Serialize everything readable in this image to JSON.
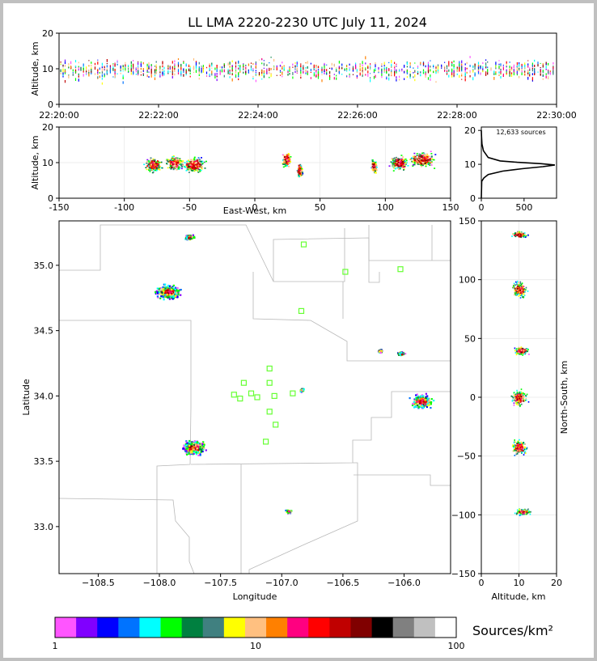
{
  "chart_data": [
    {
      "id": "time-altitude",
      "type": "scatter",
      "title": "LL LMA 2220-2230 UTC July 11, 2024",
      "xlabel": "",
      "ylabel": "Altitude, km",
      "x_ticks": [
        "22:20:00",
        "22:22:00",
        "22:24:00",
        "22:26:00",
        "22:28:00",
        "22:30:00"
      ],
      "x_range": [
        "22:20:00",
        "22:30:00"
      ],
      "y_ticks": [
        0,
        10,
        20
      ],
      "ylim": [
        0,
        20
      ]
    },
    {
      "id": "ew-altitude",
      "type": "scatter",
      "xlabel": "East-West, km",
      "ylabel": "Altitude, km",
      "x_ticks": [
        -150,
        -100,
        -50,
        0,
        50,
        100,
        150
      ],
      "xlim": [
        -150,
        150
      ],
      "y_ticks": [
        0,
        10,
        20
      ],
      "ylim": [
        0,
        20
      ],
      "clusters": [
        {
          "x_center": -78,
          "x_extent": [
            -90,
            -70
          ],
          "alt_center": 9.5
        },
        {
          "x_center": -62,
          "x_extent": [
            -72,
            -52
          ],
          "alt_center": 10
        },
        {
          "x_center": -47,
          "x_extent": [
            -58,
            -33
          ],
          "alt_center": 9.5
        },
        {
          "x_center": 24,
          "x_extent": [
            19,
            29
          ],
          "alt_center": 11
        },
        {
          "x_center": 34,
          "x_extent": [
            31,
            37
          ],
          "alt_center": 8
        },
        {
          "x_center": 91,
          "x_extent": [
            88,
            94
          ],
          "alt_center": 9
        },
        {
          "x_center": 110,
          "x_extent": [
            100,
            120
          ],
          "alt_center": 10
        },
        {
          "x_center": 128,
          "x_extent": [
            117,
            145
          ],
          "alt_center": 11
        }
      ]
    },
    {
      "id": "altitude-histogram",
      "type": "line",
      "annotation": "12,633 sources",
      "x_ticks": [
        0,
        500
      ],
      "xlim": [
        0,
        880
      ],
      "y_ticks": [
        0,
        10,
        20
      ],
      "ylim": [
        0,
        21
      ],
      "profile": [
        {
          "alt": 0,
          "count": 0
        },
        {
          "alt": 5,
          "count": 5
        },
        {
          "alt": 6,
          "count": 30
        },
        {
          "alt": 7,
          "count": 80
        },
        {
          "alt": 8,
          "count": 250
        },
        {
          "alt": 8.7,
          "count": 480
        },
        {
          "alt": 9.3,
          "count": 720
        },
        {
          "alt": 9.8,
          "count": 860
        },
        {
          "alt": 10.2,
          "count": 700
        },
        {
          "alt": 10.6,
          "count": 420
        },
        {
          "alt": 11,
          "count": 220
        },
        {
          "alt": 12,
          "count": 80
        },
        {
          "alt": 14,
          "count": 25
        },
        {
          "alt": 16,
          "count": 8
        },
        {
          "alt": 18,
          "count": 3
        },
        {
          "alt": 20,
          "count": 0
        }
      ]
    },
    {
      "id": "plan-view",
      "type": "scatter",
      "xlabel": "Longitude",
      "ylabel": "Latitude",
      "x_ticks": [
        -108.5,
        -108.0,
        -107.5,
        -107.0,
        -106.5,
        -106.0
      ],
      "xlim": [
        -108.82,
        -105.62
      ],
      "y_ticks": [
        33.0,
        33.5,
        34.0,
        34.5,
        35.0
      ],
      "ylim": [
        32.64,
        35.34
      ],
      "stations": [
        {
          "lon": -106.82,
          "lat": 35.16
        },
        {
          "lon": -106.48,
          "lat": 34.95
        },
        {
          "lon": -106.03,
          "lat": 34.97
        },
        {
          "lon": -106.84,
          "lat": 34.65
        },
        {
          "lon": -107.1,
          "lat": 34.21
        },
        {
          "lon": -107.31,
          "lat": 34.1
        },
        {
          "lon": -107.1,
          "lat": 34.1
        },
        {
          "lon": -107.25,
          "lat": 34.02
        },
        {
          "lon": -107.39,
          "lat": 34.01
        },
        {
          "lon": -107.34,
          "lat": 33.98
        },
        {
          "lon": -107.2,
          "lat": 33.99
        },
        {
          "lon": -107.06,
          "lat": 34.0
        },
        {
          "lon": -106.91,
          "lat": 34.02
        },
        {
          "lon": -107.1,
          "lat": 33.88
        },
        {
          "lon": -107.05,
          "lat": 33.78
        },
        {
          "lon": -107.13,
          "lat": 33.65
        }
      ],
      "clusters": [
        {
          "lon": -107.76,
          "lat": 35.22,
          "dlon": 0.05,
          "dlat": 0.03
        },
        {
          "lon": -107.93,
          "lat": 34.8,
          "dlon": 0.14,
          "dlat": 0.07
        },
        {
          "lon": -106.84,
          "lat": 34.05,
          "dlon": 0.02,
          "dlat": 0.02
        },
        {
          "lon": -106.2,
          "lat": 34.35,
          "dlon": 0.02,
          "dlat": 0.02
        },
        {
          "lon": -106.03,
          "lat": 34.33,
          "dlon": 0.04,
          "dlat": 0.02
        },
        {
          "lon": -105.86,
          "lat": 33.96,
          "dlon": 0.11,
          "dlat": 0.07
        },
        {
          "lon": -107.72,
          "lat": 33.61,
          "dlon": 0.13,
          "dlat": 0.07
        },
        {
          "lon": -106.95,
          "lat": 33.12,
          "dlon": 0.03,
          "dlat": 0.02
        }
      ]
    },
    {
      "id": "altitude-northsouth",
      "type": "scatter",
      "xlabel": "Altitude, km",
      "ylabel": "North-South, km",
      "x_ticks": [
        0,
        10,
        20
      ],
      "xlim": [
        0,
        20
      ],
      "y_ticks": [
        -150,
        -100,
        -50,
        0,
        50,
        100,
        150
      ],
      "ylim": [
        -150,
        150
      ],
      "clusters": [
        {
          "ns": 139,
          "alt": 10,
          "dns": 4
        },
        {
          "ns": 92,
          "alt": 10,
          "dns": 9
        },
        {
          "ns": 40,
          "alt": 10.5,
          "dns": 5
        },
        {
          "ns": 0,
          "alt": 10,
          "dns": 9
        },
        {
          "ns": -42,
          "alt": 10,
          "dns": 9
        },
        {
          "ns": -97,
          "alt": 11,
          "dns": 4
        }
      ]
    }
  ],
  "colorbar": {
    "label": "Sources/km²",
    "ticks": [
      "1",
      "10",
      "100"
    ],
    "colors": [
      "#ff55ff",
      "#8000ff",
      "#0000ff",
      "#0073ff",
      "#00ffff",
      "#00ff00",
      "#008040",
      "#408080",
      "#ffff00",
      "#ffc080",
      "#ff8000",
      "#ff0080",
      "#ff0000",
      "#c00000",
      "#800000",
      "#000000",
      "#808080",
      "#c0c0c0",
      "#ffffff"
    ]
  }
}
